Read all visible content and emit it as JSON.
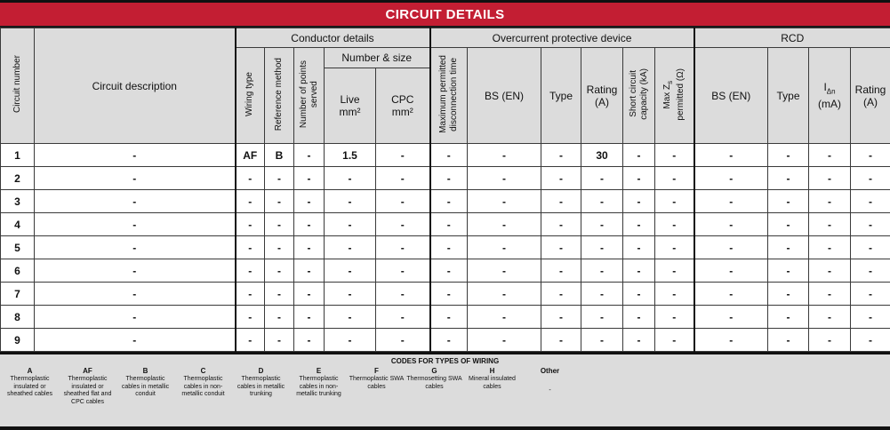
{
  "title": "CIRCUIT DETAILS",
  "colors": {
    "accent_red": "#C31E33",
    "header_gray": "#DCDCDC",
    "border_dark": "#111111"
  },
  "table": {
    "groups": {
      "conductor_details": "Conductor details",
      "overcurrent_device": "Overcurrent protective device",
      "rcd": "RCD",
      "number_and_size": "Number & size"
    },
    "headers": {
      "circuit_number": "Circuit number",
      "circuit_description": "Circuit description",
      "wiring_type": "Wiring type",
      "reference_method": "Reference method",
      "points_served_line1": "Number of points",
      "points_served_line2": "served",
      "live_line1": "Live",
      "live_line2": "mm²",
      "cpc_line1": "CPC",
      "cpc_line2": "mm²",
      "max_disc_line1": "Maximum permitted",
      "max_disc_line2": "disconnection time",
      "ocpd_bs_en": "BS (EN)",
      "ocpd_type": "Type",
      "ocpd_rating_line1": "Rating",
      "ocpd_rating_line2": "(A)",
      "sc_capacity_line1": "Short circuit",
      "sc_capacity_line2": "capacity (kA)",
      "max_zs_base": "Max Z",
      "max_zs_sub": "s",
      "max_zs_line2": "permitted (Ω)",
      "rcd_bs_en": "BS (EN)",
      "rcd_type": "Type",
      "rcd_idn_base": "I",
      "rcd_idn_sub": "Δn",
      "rcd_idn_line2": "(mA)",
      "rcd_rating_line1": "Rating",
      "rcd_rating_line2": "(A)"
    },
    "rows": [
      {
        "num": "1",
        "description": "-",
        "wiring_type": "AF",
        "reference_method": "B",
        "points_served": "-",
        "live": "1.5",
        "cpc": "-",
        "max_disc": "-",
        "bs_en": "-",
        "type": "-",
        "rating": "30",
        "sc_capacity": "-",
        "max_zs": "-",
        "rcd_bs_en": "-",
        "rcd_type": "-",
        "rcd_idn": "-",
        "rcd_rating": "-"
      },
      {
        "num": "2",
        "description": "-",
        "wiring_type": "-",
        "reference_method": "-",
        "points_served": "-",
        "live": "-",
        "cpc": "-",
        "max_disc": "-",
        "bs_en": "-",
        "type": "-",
        "rating": "-",
        "sc_capacity": "-",
        "max_zs": "-",
        "rcd_bs_en": "-",
        "rcd_type": "-",
        "rcd_idn": "-",
        "rcd_rating": "-"
      },
      {
        "num": "3",
        "description": "-",
        "wiring_type": "-",
        "reference_method": "-",
        "points_served": "-",
        "live": "-",
        "cpc": "-",
        "max_disc": "-",
        "bs_en": "-",
        "type": "-",
        "rating": "-",
        "sc_capacity": "-",
        "max_zs": "-",
        "rcd_bs_en": "-",
        "rcd_type": "-",
        "rcd_idn": "-",
        "rcd_rating": "-"
      },
      {
        "num": "4",
        "description": "-",
        "wiring_type": "-",
        "reference_method": "-",
        "points_served": "-",
        "live": "-",
        "cpc": "-",
        "max_disc": "-",
        "bs_en": "-",
        "type": "-",
        "rating": "-",
        "sc_capacity": "-",
        "max_zs": "-",
        "rcd_bs_en": "-",
        "rcd_type": "-",
        "rcd_idn": "-",
        "rcd_rating": "-"
      },
      {
        "num": "5",
        "description": "-",
        "wiring_type": "-",
        "reference_method": "-",
        "points_served": "-",
        "live": "-",
        "cpc": "-",
        "max_disc": "-",
        "bs_en": "-",
        "type": "-",
        "rating": "-",
        "sc_capacity": "-",
        "max_zs": "-",
        "rcd_bs_en": "-",
        "rcd_type": "-",
        "rcd_idn": "-",
        "rcd_rating": "-"
      },
      {
        "num": "6",
        "description": "-",
        "wiring_type": "-",
        "reference_method": "-",
        "points_served": "-",
        "live": "-",
        "cpc": "-",
        "max_disc": "-",
        "bs_en": "-",
        "type": "-",
        "rating": "-",
        "sc_capacity": "-",
        "max_zs": "-",
        "rcd_bs_en": "-",
        "rcd_type": "-",
        "rcd_idn": "-",
        "rcd_rating": "-"
      },
      {
        "num": "7",
        "description": "-",
        "wiring_type": "-",
        "reference_method": "-",
        "points_served": "-",
        "live": "-",
        "cpc": "-",
        "max_disc": "-",
        "bs_en": "-",
        "type": "-",
        "rating": "-",
        "sc_capacity": "-",
        "max_zs": "-",
        "rcd_bs_en": "-",
        "rcd_type": "-",
        "rcd_idn": "-",
        "rcd_rating": "-"
      },
      {
        "num": "8",
        "description": "-",
        "wiring_type": "-",
        "reference_method": "-",
        "points_served": "-",
        "live": "-",
        "cpc": "-",
        "max_disc": "-",
        "bs_en": "-",
        "type": "-",
        "rating": "-",
        "sc_capacity": "-",
        "max_zs": "-",
        "rcd_bs_en": "-",
        "rcd_type": "-",
        "rcd_idn": "-",
        "rcd_rating": "-"
      },
      {
        "num": "9",
        "description": "-",
        "wiring_type": "-",
        "reference_method": "-",
        "points_served": "-",
        "live": "-",
        "cpc": "-",
        "max_disc": "-",
        "bs_en": "-",
        "type": "-",
        "rating": "-",
        "sc_capacity": "-",
        "max_zs": "-",
        "rcd_bs_en": "-",
        "rcd_type": "-",
        "rcd_idn": "-",
        "rcd_rating": "-"
      }
    ]
  },
  "legend": {
    "title": "CODES FOR TYPES OF WIRING",
    "items": [
      {
        "code": "A",
        "description": "Thermoplastic insulated or sheathed cables"
      },
      {
        "code": "AF",
        "description": "Thermoplastic insulated or sheathed flat and CPC cables"
      },
      {
        "code": "B",
        "description": "Thermoplastic cables in metallic conduit"
      },
      {
        "code": "C",
        "description": "Thermoplastic cables in non-metallic conduit"
      },
      {
        "code": "D",
        "description": "Thermoplastic cables in metallic trunking"
      },
      {
        "code": "E",
        "description": "Thermoplastic cables in non-metallic trunking"
      },
      {
        "code": "F",
        "description": "Thermoplastic SWA cables"
      },
      {
        "code": "G",
        "description": "Thermosetting SWA cables"
      },
      {
        "code": "H",
        "description": "Mineral insulated cables"
      },
      {
        "code": "Other",
        "description": "-"
      }
    ]
  }
}
